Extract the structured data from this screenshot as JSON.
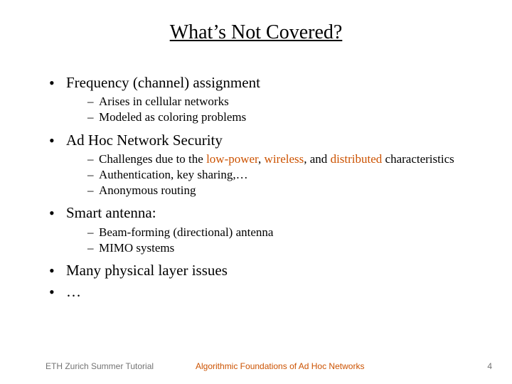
{
  "colors": {
    "background": "#ffffff",
    "text": "#000000",
    "accent": "#cc5200",
    "footer_muted": "#737373"
  },
  "fonts": {
    "title_family": "Comic Sans MS",
    "title_size_pt": 28,
    "body_family": "Comic Sans MS",
    "body_l1_size_pt": 21,
    "body_l2_size_pt": 17,
    "footer_family": "Verdana",
    "footer_size_pt": 12
  },
  "title": "What’s Not Covered?",
  "bullets": {
    "b1": {
      "text": "Frequency (channel) assignment",
      "sub": {
        "s1": "Arises in cellular networks",
        "s2": "Modeled as coloring problems"
      }
    },
    "b2": {
      "text": "Ad Hoc Network Security",
      "sub": {
        "s1_pre": "Challenges due to the ",
        "s1_hl1": "low-power",
        "s1_mid1": ", ",
        "s1_hl2": "wireless",
        "s1_mid2": ", and ",
        "s1_hl3": "distributed",
        "s1_post": " characteristics",
        "s2": "Authentication, key sharing,…",
        "s3": "Anonymous routing"
      }
    },
    "b3": {
      "text": "Smart antenna:",
      "sub": {
        "s1": "Beam-forming (directional) antenna",
        "s2": "MIMO systems"
      }
    },
    "b4": {
      "text": "Many physical layer issues"
    },
    "b5": {
      "text": "…"
    }
  },
  "footer": {
    "left": "ETH Zurich Summer Tutorial",
    "center": "Algorithmic Foundations of Ad Hoc Networks",
    "page": "4"
  }
}
